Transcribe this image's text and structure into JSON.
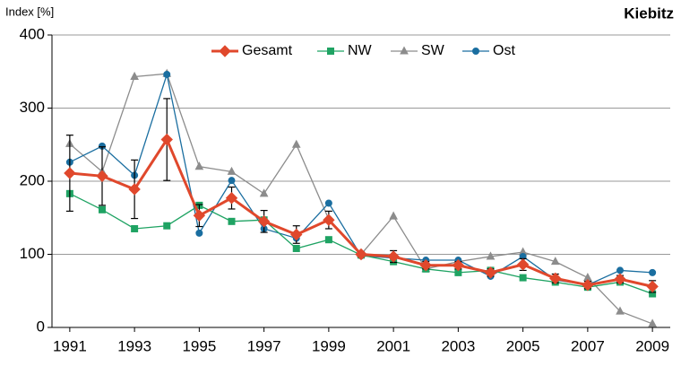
{
  "chart_data": {
    "type": "line",
    "title": "Kiebitz",
    "y_label": "Index [%]",
    "x": [
      1991,
      1992,
      1993,
      1994,
      1995,
      1996,
      1997,
      1998,
      1999,
      2000,
      2001,
      2002,
      2003,
      2004,
      2005,
      2006,
      2007,
      2008,
      2009
    ],
    "xlim": [
      1990.45,
      2009.55
    ],
    "xticks": [
      1991,
      1993,
      1995,
      1997,
      1999,
      2001,
      2003,
      2005,
      2007,
      2009
    ],
    "ylim": [
      0,
      400
    ],
    "yticks": [
      0,
      100,
      200,
      300,
      400
    ],
    "grid": true,
    "legend": "top",
    "series": [
      {
        "name": "Gesamt",
        "color": "#e0482c",
        "marker": "diamond",
        "width": 3,
        "values": [
          211,
          207,
          189,
          257,
          153,
          177,
          145,
          127,
          147,
          100,
          97,
          85,
          85,
          75,
          86,
          67,
          58,
          66,
          56
        ],
        "errors": [
          52,
          40,
          40,
          56,
          15,
          15,
          15,
          12,
          12,
          3,
          8,
          5,
          5,
          5,
          8,
          6,
          5,
          5,
          8
        ]
      },
      {
        "name": "NW",
        "color": "#1fa363",
        "marker": "square",
        "width": 1.3,
        "values": [
          183,
          161,
          135,
          139,
          167,
          145,
          147,
          108,
          120,
          99,
          90,
          80,
          75,
          78,
          68,
          62,
          55,
          62,
          46
        ]
      },
      {
        "name": "SW",
        "color": "#8c8c8c",
        "marker": "triangle",
        "width": 1.3,
        "values": [
          251,
          213,
          343,
          347,
          220,
          213,
          183,
          250,
          148,
          100,
          152,
          80,
          90,
          97,
          103,
          90,
          68,
          22,
          5
        ]
      },
      {
        "name": "Ost",
        "color": "#1a6ea0",
        "marker": "circle",
        "width": 1.3,
        "values": [
          226,
          248,
          208,
          346,
          129,
          201,
          135,
          122,
          170,
          98,
          95,
          92,
          92,
          70,
          97,
          65,
          58,
          78,
          75
        ]
      }
    ]
  }
}
